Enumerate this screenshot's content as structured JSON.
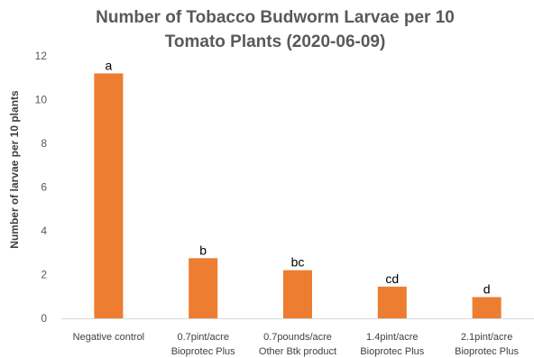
{
  "chart_data": {
    "type": "bar",
    "title_lines": [
      "Number of Tobacco Budworm Larvae per 10",
      "Tomato Plants (2020-06-09)"
    ],
    "xlabel": "",
    "ylabel": "Number of larvae per  10 plants",
    "ylim": [
      0,
      12
    ],
    "yticks": [
      0,
      2,
      4,
      6,
      8,
      10,
      12
    ],
    "grid": false,
    "legend": "none",
    "bar_color": "#ED7D31",
    "categories": [
      [
        "Negative control"
      ],
      [
        "0.7pint/acre",
        "Bioprotec Plus"
      ],
      [
        "0.7pounds/acre",
        "Other Btk product"
      ],
      [
        "1.4pint/acre",
        "Bioprotec Plus"
      ],
      [
        "2.1pint/acre",
        "Bioprotec Plus"
      ]
    ],
    "values": [
      11.2,
      2.75,
      2.2,
      1.45,
      0.97
    ],
    "bar_labels": [
      "a",
      "b",
      "bc",
      "cd",
      "d"
    ]
  }
}
